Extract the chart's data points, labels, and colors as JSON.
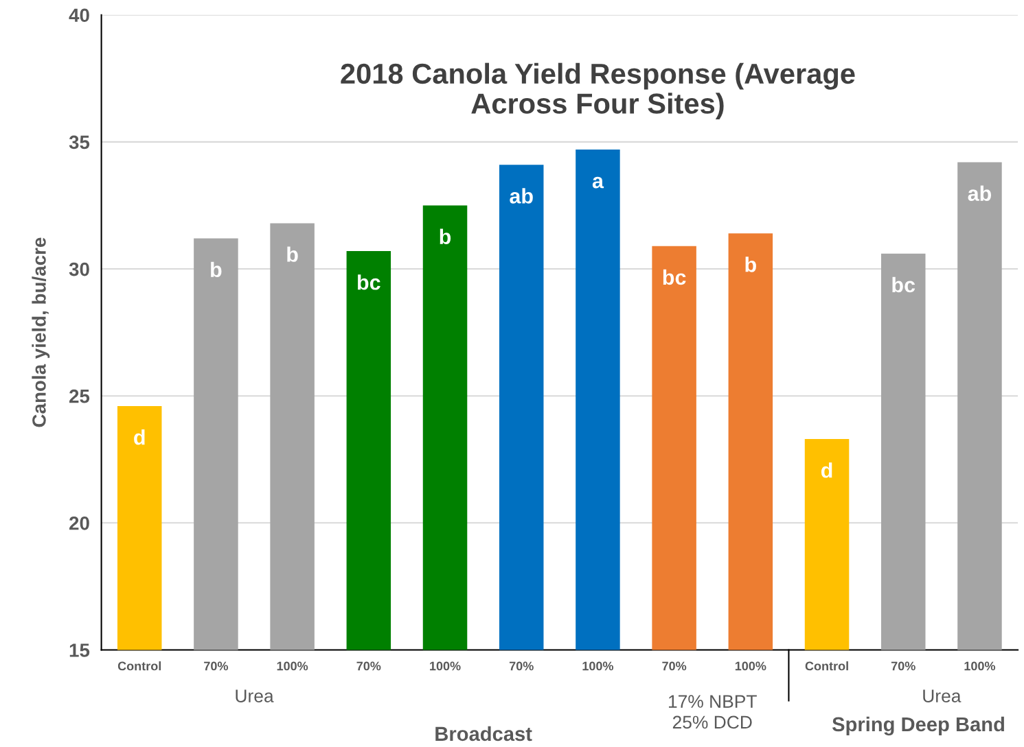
{
  "chart_data": {
    "type": "bar",
    "title": "2018 Canola Yield Response (Average\nAcross Four Sites)",
    "ylabel": "Canola yield, bu/acre",
    "categories": [
      "Control",
      "70%",
      "100%",
      "70%",
      "100%",
      "70%",
      "100%",
      "70%",
      "100%",
      "Control",
      "70%",
      "100%"
    ],
    "values": [
      24.6,
      31.2,
      31.8,
      30.7,
      32.5,
      34.1,
      34.7,
      30.9,
      31.4,
      23.3,
      30.6,
      34.2
    ],
    "colors": [
      "#ffc000",
      "#a5a5a5",
      "#a5a5a5",
      "#008000",
      "#008000",
      "#0070c0",
      "#0070c0",
      "#ed7d31",
      "#ed7d31",
      "#ffc000",
      "#a5a5a5",
      "#a5a5a5"
    ],
    "value_labels": [
      "d",
      "b",
      "b",
      "bc",
      "b",
      "ab",
      "a",
      "bc",
      "b",
      "d",
      "bc",
      "ab"
    ],
    "ylim": [
      15,
      40
    ],
    "yticks": [
      15,
      20,
      25,
      30,
      35,
      40
    ],
    "grid": "y",
    "legend": false,
    "annotations": [
      "Urea",
      "17% NBPT\n25% DCD",
      "Urea",
      "Broadcast",
      "Spring Deep Band"
    ]
  }
}
